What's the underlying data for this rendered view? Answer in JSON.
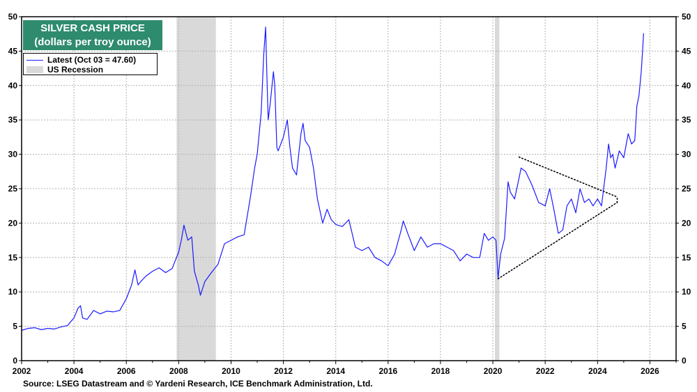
{
  "title_line1": "SILVER CASH PRICE",
  "title_line2": "(dollars per troy ounce)",
  "legend": {
    "latest_label": "Latest (Oct 03 = 47.60)",
    "recession_label": "US Recession",
    "latest_color": "#1a1aff",
    "recession_color": "#d9d9d9"
  },
  "source": "Source: LSEG Datastream and © Yardeni Research, ICE Benchmark Administration, Ltd.",
  "colors": {
    "title_bg": "#2e8b6e",
    "series": "#1a1aff",
    "recession": "#d9d9d9",
    "grid": "#b0b0b0"
  },
  "chart_data": {
    "type": "line",
    "title": "SILVER CASH PRICE",
    "subtitle": "(dollars per troy ounce)",
    "xlim": [
      2002.0,
      2027.0
    ],
    "ylim": [
      0,
      50
    ],
    "x_ticks": [
      2002,
      2004,
      2006,
      2008,
      2010,
      2012,
      2014,
      2016,
      2018,
      2020,
      2022,
      2024,
      2026
    ],
    "y_ticks": [
      0,
      5,
      10,
      15,
      20,
      25,
      30,
      35,
      40,
      45,
      50
    ],
    "grid": true,
    "legend_position": "top-left",
    "recessions": [
      [
        2007.92,
        2009.42
      ],
      [
        2020.08,
        2020.25
      ]
    ],
    "series": [
      {
        "name": "Latest (Oct 03 = 47.60)",
        "x": [
          2002.0,
          2002.25,
          2002.5,
          2002.75,
          2003.0,
          2003.25,
          2003.5,
          2003.75,
          2004.0,
          2004.15,
          2004.25,
          2004.33,
          2004.5,
          2004.75,
          2005.0,
          2005.25,
          2005.5,
          2005.75,
          2006.0,
          2006.2,
          2006.33,
          2006.45,
          2006.55,
          2006.75,
          2007.0,
          2007.25,
          2007.5,
          2007.75,
          2008.0,
          2008.1,
          2008.2,
          2008.35,
          2008.5,
          2008.6,
          2008.75,
          2008.83,
          2009.0,
          2009.25,
          2009.5,
          2009.75,
          2010.0,
          2010.25,
          2010.5,
          2010.75,
          2010.9,
          2011.0,
          2011.15,
          2011.25,
          2011.32,
          2011.38,
          2011.42,
          2011.5,
          2011.62,
          2011.67,
          2011.75,
          2011.8,
          2012.0,
          2012.15,
          2012.25,
          2012.35,
          2012.5,
          2012.67,
          2012.75,
          2012.83,
          2013.0,
          2013.15,
          2013.3,
          2013.5,
          2013.67,
          2013.83,
          2014.0,
          2014.25,
          2014.5,
          2014.75,
          2015.0,
          2015.25,
          2015.5,
          2015.75,
          2016.0,
          2016.25,
          2016.5,
          2016.58,
          2016.75,
          2017.0,
          2017.25,
          2017.5,
          2017.75,
          2018.0,
          2018.25,
          2018.5,
          2018.75,
          2019.0,
          2019.25,
          2019.5,
          2019.67,
          2019.83,
          2020.0,
          2020.12,
          2020.2,
          2020.3,
          2020.45,
          2020.58,
          2020.67,
          2020.83,
          2021.0,
          2021.08,
          2021.25,
          2021.5,
          2021.75,
          2022.0,
          2022.17,
          2022.33,
          2022.5,
          2022.67,
          2022.83,
          2023.0,
          2023.17,
          2023.33,
          2023.5,
          2023.67,
          2023.83,
          2024.0,
          2024.15,
          2024.33,
          2024.42,
          2024.5,
          2024.58,
          2024.67,
          2024.83,
          2025.0,
          2025.17,
          2025.3,
          2025.42,
          2025.5,
          2025.58,
          2025.67,
          2025.72,
          2025.76
        ],
        "values": [
          4.4,
          4.7,
          4.8,
          4.5,
          4.7,
          4.6,
          4.9,
          5.1,
          6.2,
          7.6,
          8.0,
          6.2,
          6.0,
          7.3,
          6.8,
          7.2,
          7.1,
          7.3,
          9.0,
          11.0,
          13.2,
          11.0,
          11.5,
          12.3,
          13.0,
          13.5,
          12.8,
          13.4,
          15.8,
          17.5,
          19.7,
          17.5,
          18.0,
          13.0,
          11.0,
          9.5,
          11.5,
          12.8,
          14.0,
          17.0,
          17.5,
          18.0,
          18.3,
          24.0,
          28.0,
          30.0,
          36.0,
          44.5,
          48.5,
          40.0,
          35.0,
          37.5,
          42.0,
          40.0,
          31.0,
          30.5,
          32.5,
          35.0,
          31.0,
          28.0,
          27.0,
          33.0,
          34.5,
          32.0,
          31.0,
          28.0,
          23.5,
          20.0,
          22.0,
          20.5,
          19.8,
          19.5,
          20.5,
          16.5,
          16.0,
          16.5,
          15.0,
          14.5,
          13.8,
          15.5,
          19.0,
          20.3,
          18.5,
          16.0,
          18.0,
          16.5,
          17.0,
          17.0,
          16.5,
          16.0,
          14.5,
          15.5,
          15.0,
          15.0,
          18.5,
          17.5,
          18.0,
          17.5,
          12.0,
          15.5,
          17.8,
          26.0,
          24.5,
          23.5,
          26.5,
          28.0,
          27.5,
          25.5,
          23.0,
          22.5,
          25.0,
          22.0,
          18.5,
          19.0,
          22.5,
          23.5,
          21.5,
          25.0,
          23.0,
          23.5,
          22.5,
          23.5,
          22.5,
          28.0,
          31.5,
          29.5,
          30.0,
          28.0,
          30.5,
          29.5,
          33.0,
          31.5,
          32.0,
          37.0,
          38.5,
          42.0,
          45.0,
          47.6
        ]
      }
    ],
    "annotations": [
      {
        "type": "dotted-line",
        "from": [
          2021.0,
          29.6
        ],
        "to": [
          2024.75,
          23.8
        ]
      },
      {
        "type": "dotted-line",
        "from": [
          2020.2,
          11.9
        ],
        "to": [
          2024.75,
          23.0
        ]
      },
      {
        "type": "dotted-line",
        "from": [
          2024.75,
          23.0
        ],
        "to": [
          2024.75,
          23.8
        ]
      }
    ]
  }
}
